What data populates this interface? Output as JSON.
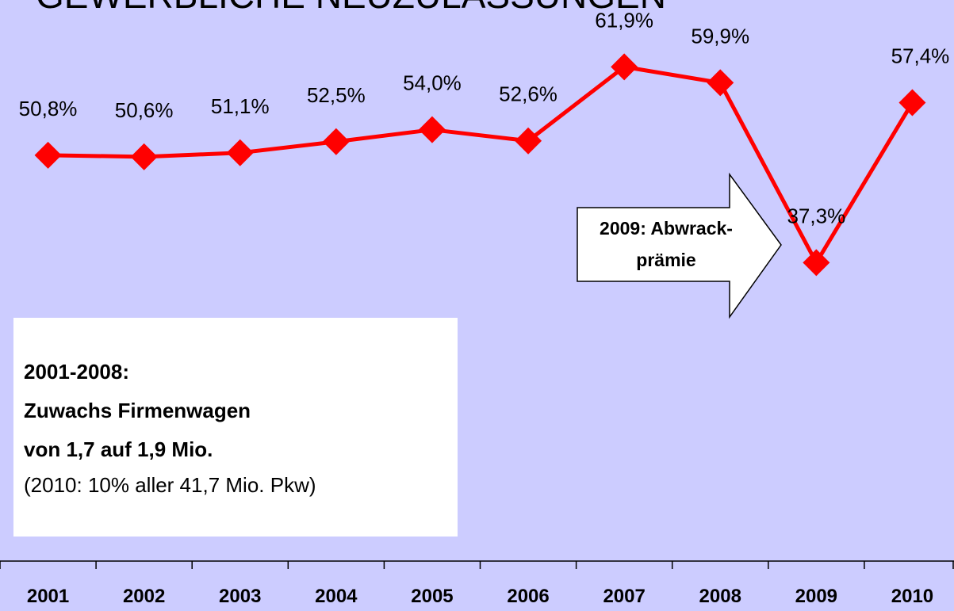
{
  "chart_data": {
    "type": "line",
    "title": "GEWERBLICHE NEUZULASSUNGEN",
    "categories": [
      "2001",
      "2002",
      "2003",
      "2004",
      "2005",
      "2006",
      "2007",
      "2008",
      "2009",
      "2010"
    ],
    "series": [
      {
        "name": "Gewerbliche Neuzulassungen",
        "color": "#ff0000",
        "values": [
          50.8,
          50.6,
          51.1,
          52.5,
          54.0,
          52.6,
          61.9,
          59.9,
          37.3,
          57.4
        ],
        "value_labels": [
          "50,8%",
          "50,6%",
          "51,1%",
          "52,5%",
          "54,0%",
          "52,6%",
          "61,9%",
          "59,9%",
          "37,3%",
          "57,4%"
        ]
      }
    ],
    "ylim": [
      0,
      70
    ],
    "annotations": {
      "arrow": [
        "2009: Abwrack-",
        "prämie"
      ],
      "box_bold": [
        "2001-2008:",
        "Zuwachs Firmenwagen",
        "von 1,7 auf 1,9 Mio."
      ],
      "box_normal": "(2010: 10% aller 41,7 Mio. Pkw)"
    }
  }
}
